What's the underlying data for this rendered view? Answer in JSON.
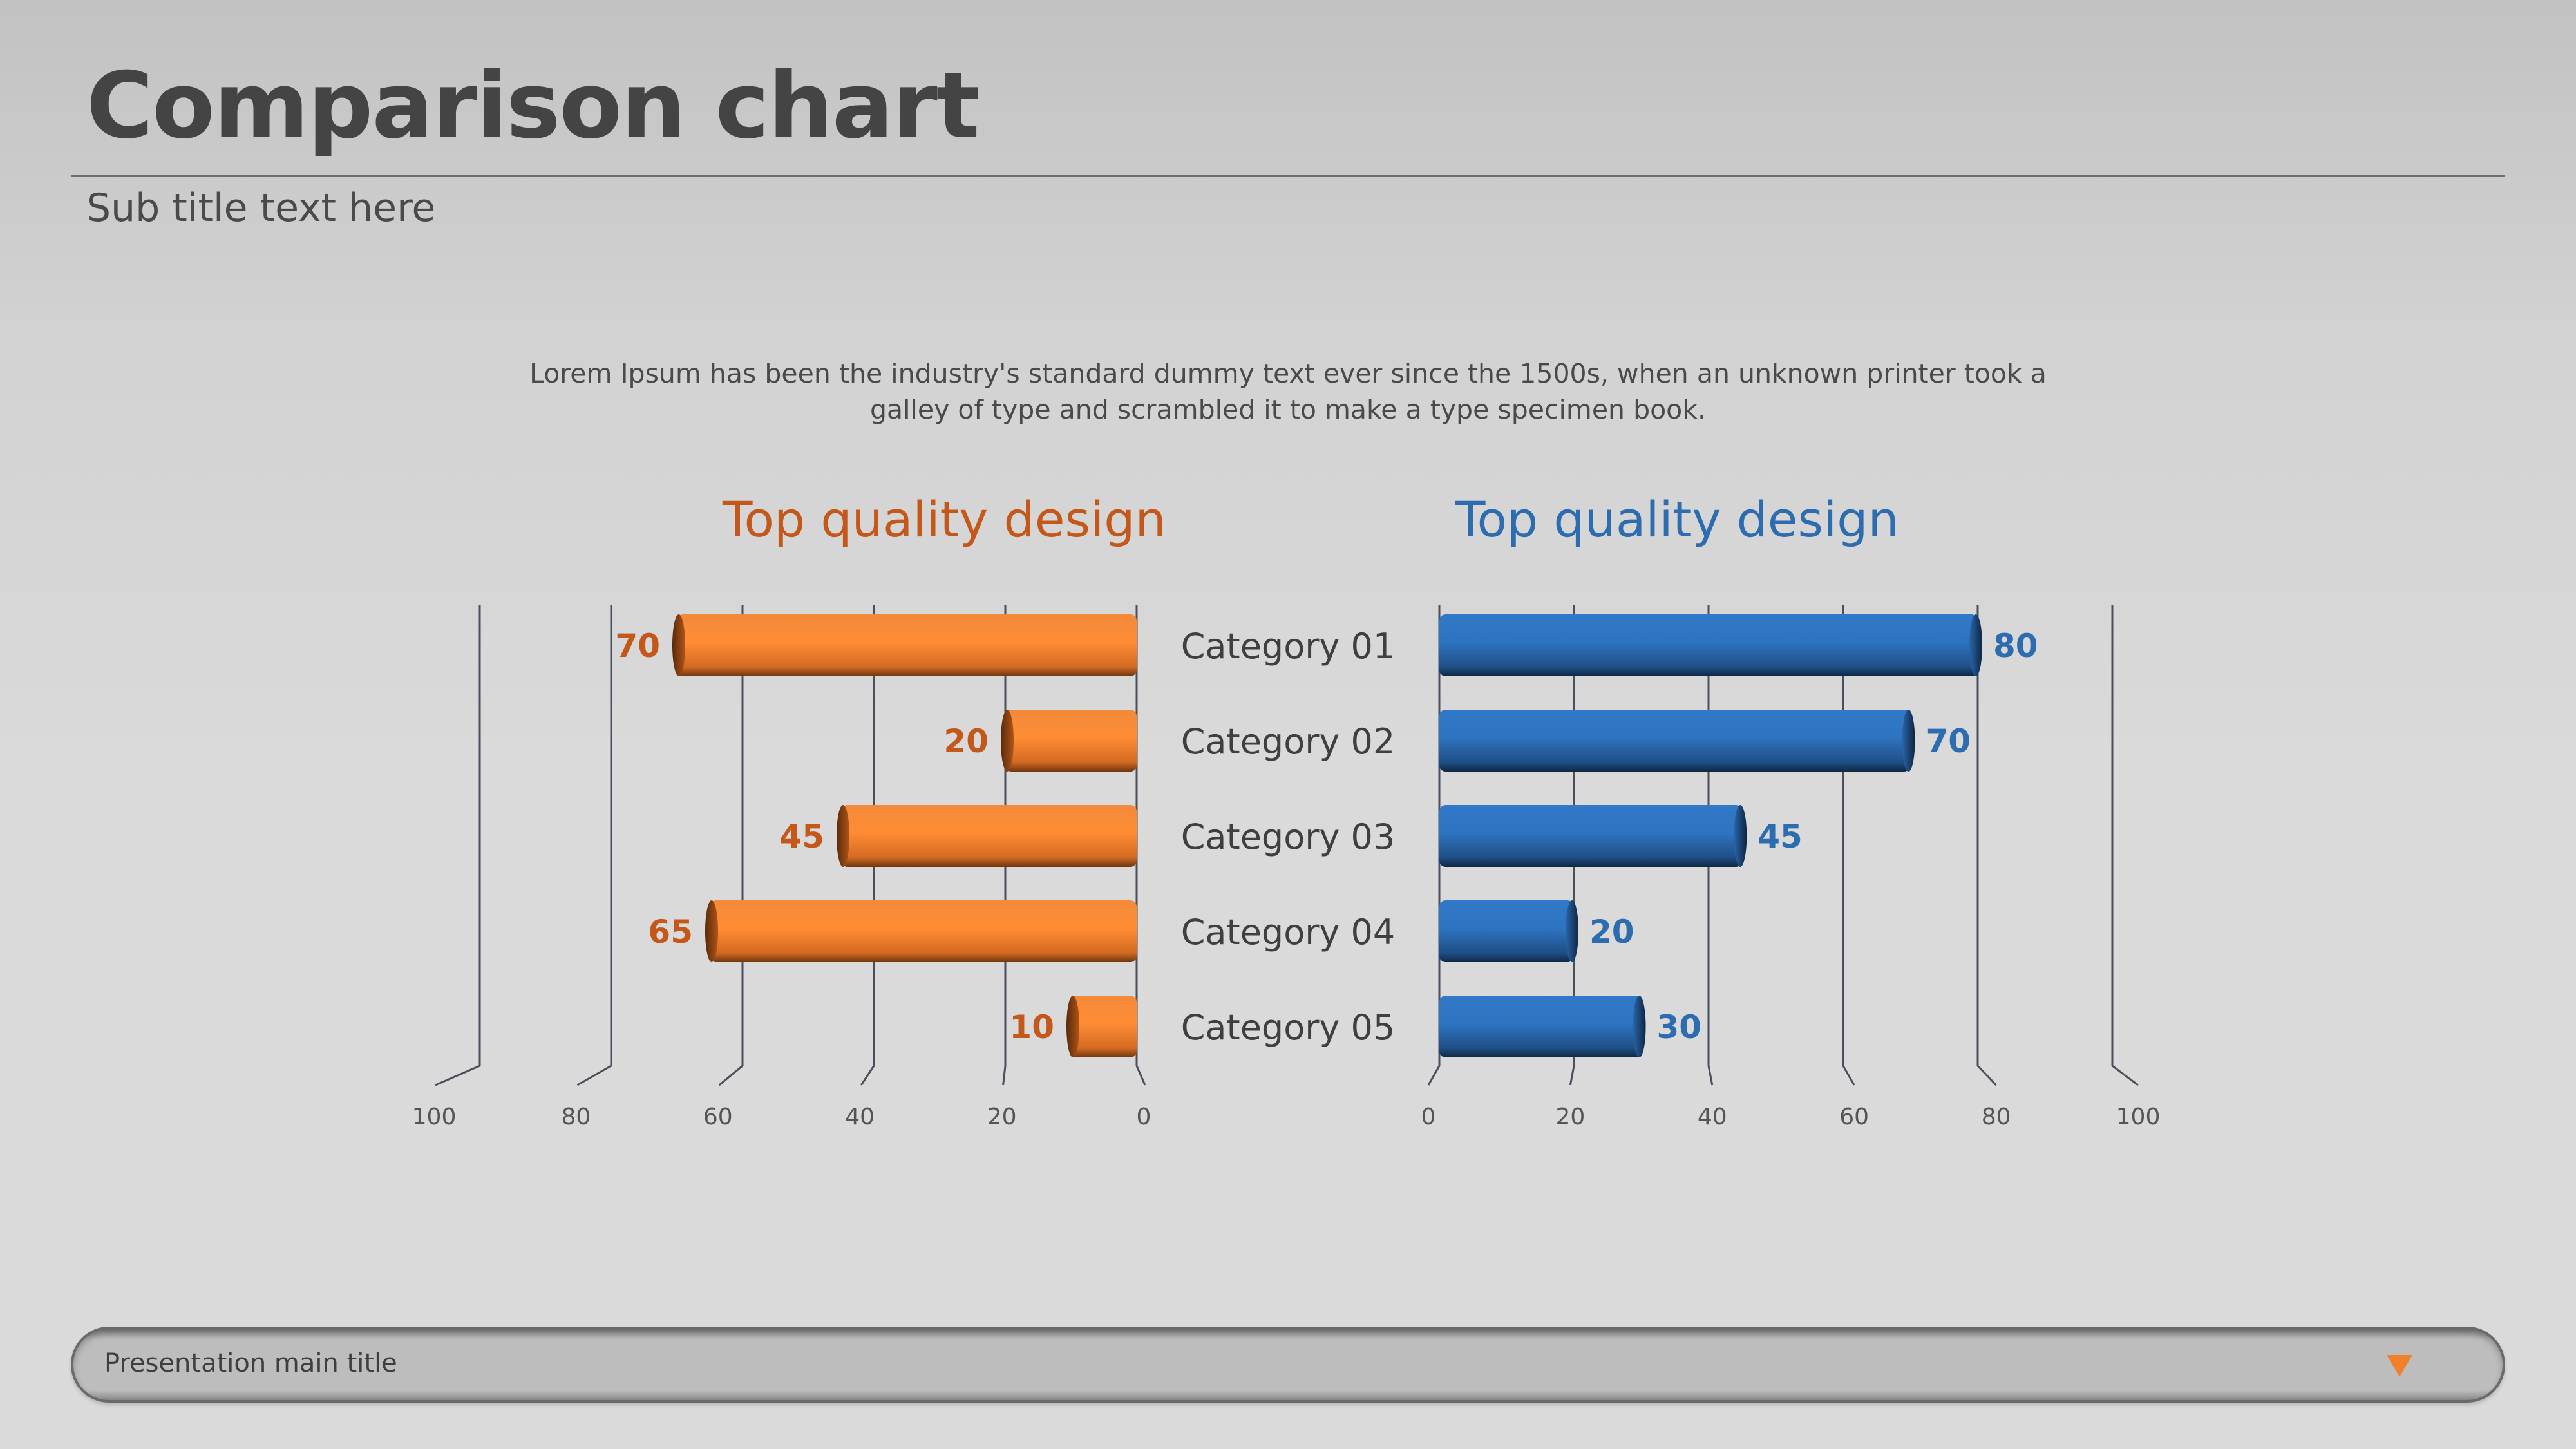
{
  "header": {
    "title": "Comparison chart",
    "subtitle": "Sub title text here"
  },
  "description": "Lorem Ipsum has been the industry's standard dummy text ever since the 1500s, when an unknown printer took a galley of type and scrambled it to make a type specimen book.",
  "footer": {
    "text": "Presentation main title",
    "arrow_icon": "triangle-down-icon",
    "arrow_color": "#f08029"
  },
  "colors": {
    "left_accent": "#c4581a",
    "right_accent": "#2e6cb0",
    "left_bar": "#f4842f",
    "right_bar": "#2e73be"
  },
  "chart_data": [
    {
      "type": "bar",
      "orientation": "horizontal",
      "direction": "right-to-left",
      "title": "Top quality design",
      "categories": [
        "Category 01",
        "Category 02",
        "Category 03",
        "Category 04",
        "Category 05"
      ],
      "values": [
        70,
        20,
        45,
        65,
        10
      ],
      "xlim": [
        0,
        100
      ],
      "ticks": [
        100,
        80,
        60,
        40,
        20,
        0
      ],
      "grid": true
    },
    {
      "type": "bar",
      "orientation": "horizontal",
      "direction": "left-to-right",
      "title": "Top quality design",
      "categories": [
        "Category 01",
        "Category 02",
        "Category 03",
        "Category 04",
        "Category 05"
      ],
      "values": [
        80,
        70,
        45,
        20,
        30
      ],
      "xlim": [
        0,
        100
      ],
      "ticks": [
        0,
        20,
        40,
        60,
        80,
        100
      ],
      "grid": true
    }
  ]
}
